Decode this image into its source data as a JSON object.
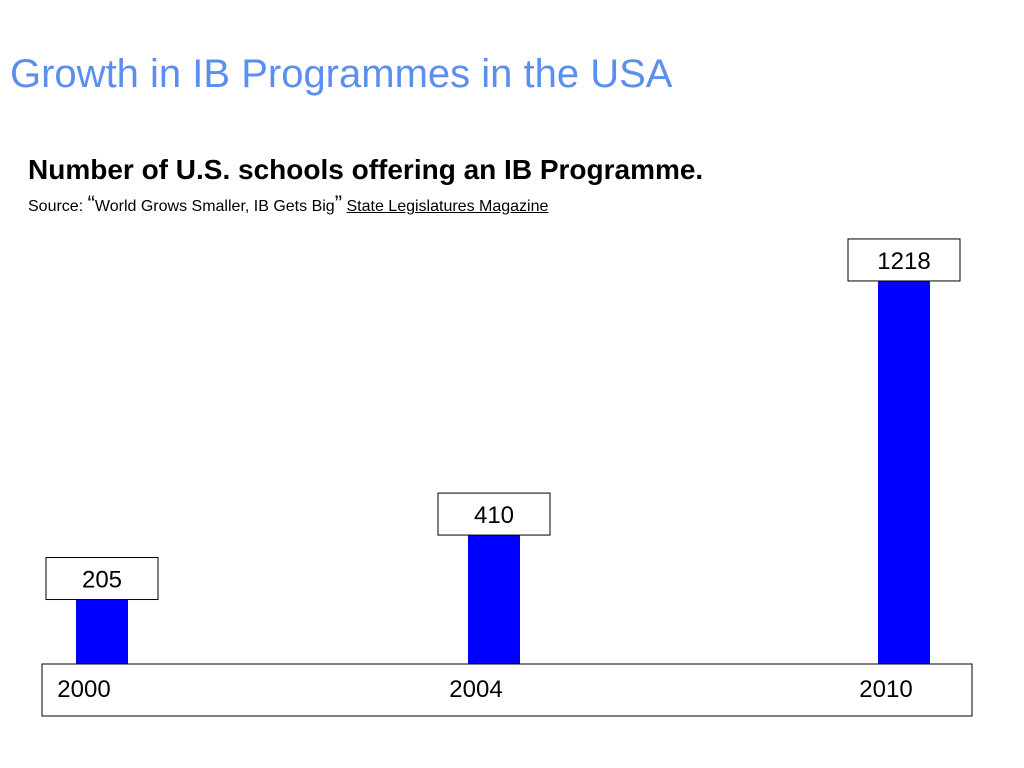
{
  "slide": {
    "title": "Growth in IB Programmes in the USA"
  },
  "subtitle": "Number of U.S. schools offering an IB Programme.",
  "source": {
    "prefix": "Source: ",
    "open_quote": "“",
    "article": "World Grows Smaller, IB Gets Big",
    "close_quote": "”",
    "publication": "State Legislatures Magazine"
  },
  "colors": {
    "title": "#5b8fef",
    "bar": "#0000ff"
  },
  "chart_data": {
    "type": "bar",
    "categories": [
      "2000",
      "2004",
      "2010"
    ],
    "values": [
      205,
      410,
      1218
    ],
    "data_labels": [
      "205",
      "410",
      "1218"
    ],
    "title": "",
    "xlabel": "",
    "ylabel": "",
    "ylim": [
      0,
      1450
    ],
    "grid": false,
    "legend": "none"
  }
}
